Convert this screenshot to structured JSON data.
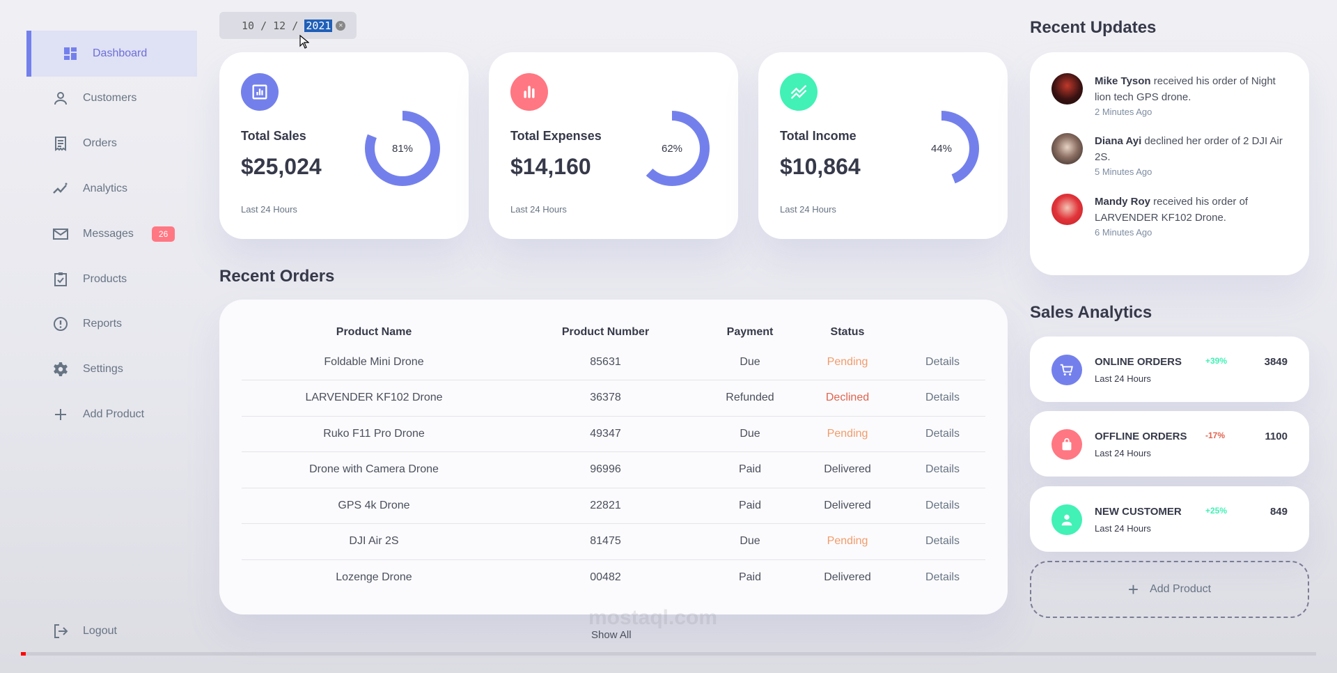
{
  "sidebar": {
    "items": [
      {
        "label": "Dashboard",
        "icon": "dashboard-icon",
        "active": true
      },
      {
        "label": "Customers",
        "icon": "person-icon"
      },
      {
        "label": "Orders",
        "icon": "receipt-icon"
      },
      {
        "label": "Analytics",
        "icon": "insights-icon"
      },
      {
        "label": "Messages",
        "icon": "mail-icon",
        "badge": "26"
      },
      {
        "label": "Products",
        "icon": "inventory-icon"
      },
      {
        "label": "Reports",
        "icon": "report-icon"
      },
      {
        "label": "Settings",
        "icon": "gear-icon"
      },
      {
        "label": "Add Product",
        "icon": "plus-icon"
      }
    ],
    "logout": "Logout"
  },
  "date": {
    "day_month": "10 / 12 / ",
    "year": "2021"
  },
  "stats": [
    {
      "label": "Total Sales",
      "amount": "$25,024",
      "percent_text": "81%",
      "percent": 81,
      "sub": "Last 24 Hours",
      "icon": "bar-chart-icon",
      "color": "#7380ec"
    },
    {
      "label": "Total Expenses",
      "amount": "$14,160",
      "percent_text": "62%",
      "percent": 62,
      "sub": "Last 24 Hours",
      "icon": "bar-chart-icon",
      "color": "#ff7782"
    },
    {
      "label": "Total Income",
      "amount": "$10,864",
      "percent_text": "44%",
      "percent": 44,
      "sub": "Last 24 Hours",
      "icon": "trending-icon",
      "color": "#41f1b6"
    }
  ],
  "orders": {
    "title": "Recent Orders",
    "headers": [
      "Product Name",
      "Product Number",
      "Payment",
      "Status",
      ""
    ],
    "rows": [
      {
        "name": "Foldable Mini Drone",
        "number": "85631",
        "payment": "Due",
        "status": "Pending",
        "action": "Details"
      },
      {
        "name": "LARVENDER KF102 Drone",
        "number": "36378",
        "payment": "Refunded",
        "status": "Declined",
        "action": "Details"
      },
      {
        "name": "Ruko F11 Pro Drone",
        "number": "49347",
        "payment": "Due",
        "status": "Pending",
        "action": "Details"
      },
      {
        "name": "Drone with Camera Drone",
        "number": "96996",
        "payment": "Paid",
        "status": "Delivered",
        "action": "Details"
      },
      {
        "name": "GPS 4k Drone",
        "number": "22821",
        "payment": "Paid",
        "status": "Delivered",
        "action": "Details"
      },
      {
        "name": "DJI Air 2S",
        "number": "81475",
        "payment": "Due",
        "status": "Pending",
        "action": "Details"
      },
      {
        "name": "Lozenge Drone",
        "number": "00482",
        "payment": "Paid",
        "status": "Delivered",
        "action": "Details"
      }
    ],
    "show_all": "Show All"
  },
  "updates": {
    "title": "Recent Updates",
    "items": [
      {
        "name": "Mike Tyson",
        "text": " received his order of Night lion tech GPS drone.",
        "time": "2 Minutes Ago"
      },
      {
        "name": "Diana Ayi",
        "text": " declined her order of 2 DJI Air 2S.",
        "time": "5 Minutes Ago"
      },
      {
        "name": "Mandy Roy",
        "text": " received his order of LARVENDER KF102 Drone.",
        "time": "6 Minutes Ago"
      }
    ]
  },
  "analytics": {
    "title": "Sales Analytics",
    "items": [
      {
        "title": "ONLINE ORDERS",
        "sub": "Last 24 Hours",
        "pct": "+39%",
        "value": "3849",
        "color": "#7380ec",
        "pct_color": "#41f1b6",
        "icon": "cart-icon"
      },
      {
        "title": "OFFLINE ORDERS",
        "sub": "Last 24 Hours",
        "pct": "-17%",
        "value": "1100",
        "color": "#ff7782",
        "pct_color": "#ff7782",
        "icon": "bag-icon"
      },
      {
        "title": "NEW CUSTOMER",
        "sub": "Last 24 Hours",
        "pct": "+25%",
        "value": "849",
        "color": "#41f1b6",
        "pct_color": "#41f1b6",
        "icon": "person-icon"
      }
    ],
    "add_product": "Add Product"
  },
  "video": {
    "progress": 0.004
  },
  "watermark": "mostaql.com"
}
